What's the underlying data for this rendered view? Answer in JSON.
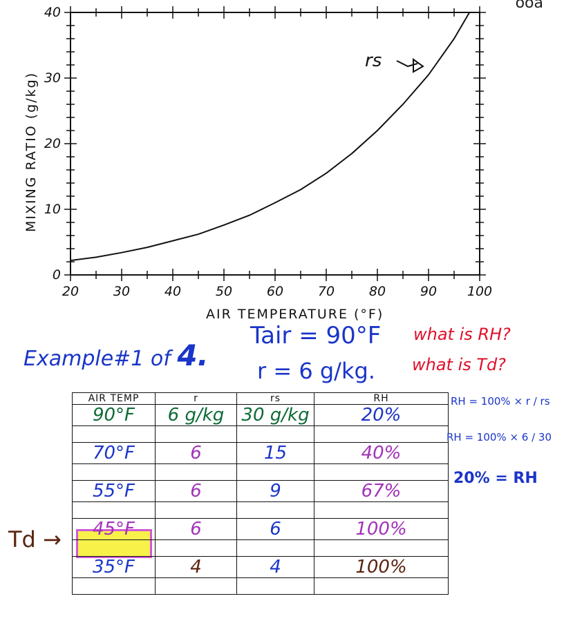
{
  "corner_text": "ooa",
  "chart_data": {
    "type": "line",
    "xlabel": "AIR TEMPERATURE (°F)",
    "ylabel": "MIXING RATIO (g/kg)",
    "xlim": [
      20,
      100
    ],
    "ylim": [
      0,
      40
    ],
    "x_ticks": [
      "20",
      "30",
      "40",
      "50",
      "60",
      "70",
      "80",
      "90",
      "100"
    ],
    "y_ticks": [
      "0",
      "10",
      "20",
      "30",
      "40"
    ],
    "series": [
      {
        "name": "rs",
        "x": [
          20,
          25,
          30,
          35,
          40,
          45,
          50,
          55,
          60,
          65,
          70,
          75,
          80,
          85,
          90,
          95,
          98
        ],
        "y": [
          2.2,
          2.7,
          3.4,
          4.2,
          5.2,
          6.2,
          7.6,
          9.1,
          11.0,
          13.0,
          15.5,
          18.5,
          22.0,
          26.0,
          30.5,
          36.0,
          40.0
        ]
      }
    ],
    "annotation": "rs"
  },
  "example": {
    "title": "Example#1 of",
    "number": "4.",
    "tair": "Tair = 90°F",
    "r": "r = 6 g/kg.",
    "question1": "what is RH?",
    "question2": "what is Td?"
  },
  "table": {
    "headers": [
      "AIR TEMP",
      "r",
      "rs",
      "RH"
    ],
    "rows": [
      [
        "90°F",
        "6 g/kg",
        "30 g/kg",
        "20%"
      ],
      [
        "70°F",
        "6",
        "15",
        "40%"
      ],
      [
        "55°F",
        "6",
        "9",
        "67%"
      ],
      [
        "45°F",
        "6",
        "6",
        "100%"
      ],
      [
        "35°F",
        "4",
        "4",
        "100%"
      ]
    ]
  },
  "formulas": {
    "f1": "RH = 100% × r / rs",
    "f2": "RH = 100% × 6 / 30",
    "result": "20% = RH"
  },
  "td_label": "Td →",
  "colors": {
    "blue": "#1a35c8",
    "red": "#e0102a",
    "green": "#0e6b36",
    "purple": "#a233b8",
    "brown": "#5a2410",
    "highlight": "#f6ef2b"
  }
}
